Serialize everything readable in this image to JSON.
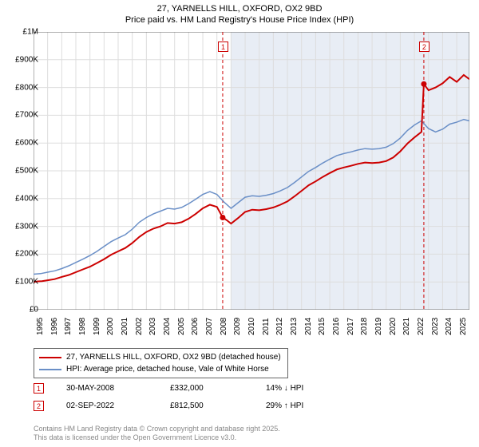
{
  "title": {
    "line1": "27, YARNELLS HILL, OXFORD, OX2 9BD",
    "line2": "Price paid vs. HM Land Registry's House Price Index (HPI)"
  },
  "chart": {
    "type": "line",
    "background_color": "#ffffff",
    "shaded_region": {
      "x_start": 2009,
      "x_end": 2025.9,
      "fill": "#e8edf5"
    },
    "grid_color": "#dddddd",
    "axis_color": "#666666",
    "x": {
      "min": 1995,
      "max": 2025.9,
      "ticks": [
        1995,
        1996,
        1997,
        1998,
        1999,
        2000,
        2001,
        2002,
        2003,
        2004,
        2005,
        2006,
        2007,
        2008,
        2009,
        2010,
        2011,
        2012,
        2013,
        2014,
        2015,
        2016,
        2017,
        2018,
        2019,
        2020,
        2021,
        2022,
        2023,
        2024,
        2025
      ],
      "tick_labels": [
        "1995",
        "1996",
        "1997",
        "1998",
        "1999",
        "2000",
        "2001",
        "2002",
        "2003",
        "2004",
        "2005",
        "2006",
        "2007",
        "2008",
        "2009",
        "2010",
        "2011",
        "2012",
        "2013",
        "2014",
        "2015",
        "2016",
        "2017",
        "2018",
        "2019",
        "2020",
        "2021",
        "2022",
        "2023",
        "2024",
        "2025"
      ]
    },
    "y": {
      "min": 0,
      "max": 1000000,
      "ticks": [
        0,
        100000,
        200000,
        300000,
        400000,
        500000,
        600000,
        700000,
        800000,
        900000,
        1000000
      ],
      "tick_labels": [
        "£0",
        "£100K",
        "£200K",
        "£300K",
        "£400K",
        "£500K",
        "£600K",
        "£700K",
        "£800K",
        "£900K",
        "£1M"
      ]
    },
    "series": [
      {
        "id": "property",
        "label": "27, YARNELLS HILL, OXFORD, OX2 9BD (detached house)",
        "color": "#cc0000",
        "width": 2,
        "points": [
          [
            1995,
            100000
          ],
          [
            1995.3,
            102000
          ],
          [
            1995.6,
            103000
          ],
          [
            1996,
            106000
          ],
          [
            1996.5,
            110000
          ],
          [
            1997,
            118000
          ],
          [
            1997.5,
            125000
          ],
          [
            1998,
            135000
          ],
          [
            1998.5,
            145000
          ],
          [
            1999,
            155000
          ],
          [
            1999.5,
            168000
          ],
          [
            2000,
            182000
          ],
          [
            2000.5,
            198000
          ],
          [
            2001,
            210000
          ],
          [
            2001.5,
            222000
          ],
          [
            2002,
            240000
          ],
          [
            2002.5,
            262000
          ],
          [
            2003,
            280000
          ],
          [
            2003.5,
            292000
          ],
          [
            2004,
            300000
          ],
          [
            2004.5,
            312000
          ],
          [
            2005,
            310000
          ],
          [
            2005.5,
            315000
          ],
          [
            2006,
            328000
          ],
          [
            2006.5,
            345000
          ],
          [
            2007,
            365000
          ],
          [
            2007.5,
            378000
          ],
          [
            2008,
            370000
          ],
          [
            2008.41,
            332000
          ],
          [
            2008.7,
            322000
          ],
          [
            2009,
            310000
          ],
          [
            2009.5,
            330000
          ],
          [
            2010,
            352000
          ],
          [
            2010.5,
            360000
          ],
          [
            2011,
            358000
          ],
          [
            2011.5,
            362000
          ],
          [
            2012,
            368000
          ],
          [
            2012.5,
            378000
          ],
          [
            2013,
            390000
          ],
          [
            2013.5,
            408000
          ],
          [
            2014,
            428000
          ],
          [
            2014.5,
            448000
          ],
          [
            2015,
            462000
          ],
          [
            2015.5,
            478000
          ],
          [
            2016,
            492000
          ],
          [
            2016.5,
            505000
          ],
          [
            2017,
            512000
          ],
          [
            2017.5,
            518000
          ],
          [
            2018,
            525000
          ],
          [
            2018.5,
            530000
          ],
          [
            2019,
            528000
          ],
          [
            2019.5,
            530000
          ],
          [
            2020,
            535000
          ],
          [
            2020.5,
            548000
          ],
          [
            2021,
            570000
          ],
          [
            2021.5,
            598000
          ],
          [
            2022,
            620000
          ],
          [
            2022.5,
            640000
          ],
          [
            2022.67,
            812500
          ],
          [
            2023,
            790000
          ],
          [
            2023.5,
            800000
          ],
          [
            2024,
            815000
          ],
          [
            2024.5,
            838000
          ],
          [
            2025,
            820000
          ],
          [
            2025.5,
            845000
          ],
          [
            2025.9,
            830000
          ]
        ]
      },
      {
        "id": "hpi",
        "label": "HPI: Average price, detached house, Vale of White Horse",
        "color": "#6a8fc7",
        "width": 1.5,
        "points": [
          [
            1995,
            128000
          ],
          [
            1995.5,
            130000
          ],
          [
            1996,
            135000
          ],
          [
            1996.5,
            140000
          ],
          [
            1997,
            148000
          ],
          [
            1997.5,
            158000
          ],
          [
            1998,
            170000
          ],
          [
            1998.5,
            182000
          ],
          [
            1999,
            195000
          ],
          [
            1999.5,
            210000
          ],
          [
            2000,
            228000
          ],
          [
            2000.5,
            245000
          ],
          [
            2001,
            258000
          ],
          [
            2001.5,
            270000
          ],
          [
            2002,
            290000
          ],
          [
            2002.5,
            315000
          ],
          [
            2003,
            332000
          ],
          [
            2003.5,
            345000
          ],
          [
            2004,
            355000
          ],
          [
            2004.5,
            365000
          ],
          [
            2005,
            362000
          ],
          [
            2005.5,
            368000
          ],
          [
            2006,
            382000
          ],
          [
            2006.5,
            398000
          ],
          [
            2007,
            415000
          ],
          [
            2007.5,
            425000
          ],
          [
            2008,
            415000
          ],
          [
            2008.5,
            388000
          ],
          [
            2009,
            365000
          ],
          [
            2009.5,
            385000
          ],
          [
            2010,
            405000
          ],
          [
            2010.5,
            410000
          ],
          [
            2011,
            408000
          ],
          [
            2011.5,
            412000
          ],
          [
            2012,
            418000
          ],
          [
            2012.5,
            428000
          ],
          [
            2013,
            440000
          ],
          [
            2013.5,
            458000
          ],
          [
            2014,
            478000
          ],
          [
            2014.5,
            498000
          ],
          [
            2015,
            512000
          ],
          [
            2015.5,
            528000
          ],
          [
            2016,
            542000
          ],
          [
            2016.5,
            555000
          ],
          [
            2017,
            562000
          ],
          [
            2017.5,
            568000
          ],
          [
            2018,
            575000
          ],
          [
            2018.5,
            580000
          ],
          [
            2019,
            578000
          ],
          [
            2019.5,
            580000
          ],
          [
            2020,
            585000
          ],
          [
            2020.5,
            598000
          ],
          [
            2021,
            618000
          ],
          [
            2021.5,
            645000
          ],
          [
            2022,
            665000
          ],
          [
            2022.5,
            680000
          ],
          [
            2023,
            652000
          ],
          [
            2023.5,
            640000
          ],
          [
            2024,
            650000
          ],
          [
            2024.5,
            668000
          ],
          [
            2025,
            675000
          ],
          [
            2025.5,
            685000
          ],
          [
            2025.9,
            680000
          ]
        ]
      }
    ],
    "sale_markers": [
      {
        "n": "1",
        "x": 2008.41,
        "y": 332000,
        "line_color": "#cc0000",
        "dash": "4,3"
      },
      {
        "n": "2",
        "x": 2022.67,
        "y": 812500,
        "line_color": "#cc0000",
        "dash": "4,3"
      }
    ],
    "sale_point_color": "#cc0000"
  },
  "legend": {
    "items": [
      {
        "color": "#cc0000",
        "label": "27, YARNELLS HILL, OXFORD, OX2 9BD (detached house)"
      },
      {
        "color": "#6a8fc7",
        "label": "HPI: Average price, detached house, Vale of White Horse"
      }
    ]
  },
  "sales": [
    {
      "n": "1",
      "color": "#cc0000",
      "date": "30-MAY-2008",
      "price": "£332,000",
      "delta": "14% ↓ HPI"
    },
    {
      "n": "2",
      "color": "#cc0000",
      "date": "02-SEP-2022",
      "price": "£812,500",
      "delta": "29% ↑ HPI"
    }
  ],
  "footer": {
    "line1": "Contains HM Land Registry data © Crown copyright and database right 2025.",
    "line2": "This data is licensed under the Open Government Licence v3.0."
  }
}
